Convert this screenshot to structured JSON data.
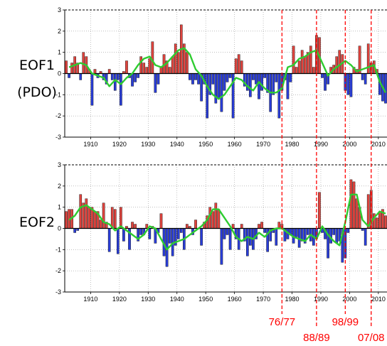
{
  "chart_data": [
    {
      "type": "bar",
      "panel_label_lines": [
        "EOF1",
        "(PDO)"
      ],
      "xlim": [
        1901,
        2013
      ],
      "ylim": [
        -3,
        3
      ],
      "x_ticks": [
        1910,
        1920,
        1930,
        1940,
        1950,
        1960,
        1970,
        1980,
        1990,
        2000,
        2010
      ],
      "x_tick_labels": [
        "1910",
        "1920",
        "1930",
        "1940",
        "1950",
        "1960",
        "1970",
        "1980",
        "1990",
        "2000",
        "2010"
      ],
      "y_ticks": [
        -3,
        -2,
        -1,
        0,
        1,
        2,
        3
      ],
      "y_tick_labels": [
        "-3",
        "-2",
        "-1",
        "0",
        "1",
        "2",
        "3"
      ],
      "grid": true,
      "series": [
        {
          "kind": "bar",
          "x": [
            1901,
            1902,
            1903,
            1904,
            1905,
            1906,
            1907,
            1908,
            1909,
            1910,
            1911,
            1912,
            1913,
            1914,
            1915,
            1916,
            1917,
            1918,
            1919,
            1920,
            1921,
            1922,
            1923,
            1924,
            1925,
            1926,
            1927,
            1928,
            1929,
            1930,
            1931,
            1932,
            1933,
            1934,
            1935,
            1936,
            1937,
            1938,
            1939,
            1940,
            1941,
            1942,
            1943,
            1944,
            1945,
            1946,
            1947,
            1948,
            1949,
            1950,
            1951,
            1952,
            1953,
            1954,
            1955,
            1956,
            1957,
            1958,
            1959,
            1960,
            1961,
            1962,
            1963,
            1964,
            1965,
            1966,
            1967,
            1968,
            1969,
            1970,
            1971,
            1972,
            1973,
            1974,
            1975,
            1976,
            1977,
            1978,
            1979,
            1980,
            1981,
            1982,
            1983,
            1984,
            1985,
            1986,
            1987,
            1988,
            1989,
            1990,
            1991,
            1992,
            1993,
            1994,
            1995,
            1996,
            1997,
            1998,
            1999,
            2000,
            2001,
            2002,
            2003,
            2004,
            2005,
            2006,
            2007,
            2008,
            2009,
            2010,
            2011,
            2012
          ],
          "values": [
            0.6,
            -0.2,
            0.5,
            0.8,
            0.5,
            -0.3,
            1.0,
            0.8,
            0.2,
            -1.5,
            0.2,
            -0.2,
            0.1,
            -0.3,
            -0.5,
            0.2,
            -0.3,
            -0.8,
            -0.3,
            -1.5,
            0.1,
            0.6,
            -0.2,
            -0.6,
            -0.4,
            -0.2,
            0.8,
            0.5,
            0.3,
            0.7,
            1.5,
            -0.9,
            -0.5,
            0.3,
            0.9,
            0.6,
            0.3,
            0.8,
            1.4,
            1.0,
            2.3,
            1.4,
            1.0,
            -0.3,
            -0.5,
            -0.3,
            -0.5,
            -1.3,
            -0.5,
            -2.1,
            -1.0,
            -0.5,
            -1.4,
            -1.2,
            -1.8,
            -0.8,
            -0.4,
            -0.2,
            -2.1,
            0.7,
            0.9,
            0.6,
            -0.6,
            -0.8,
            -1.1,
            -0.3,
            -0.5,
            -1.2,
            -0.8,
            -0.2,
            -0.9,
            -1.8,
            -1.0,
            -0.4,
            -2.1,
            -0.8,
            -0.3,
            -1.2,
            -0.4,
            1.3,
            0.3,
            0.6,
            1.1,
            0.8,
            1.0,
            1.3,
            0.3,
            1.8,
            1.7,
            -0.2,
            -0.8,
            -0.5,
            0.3,
            0.4,
            0.8,
            1.1,
            0.9,
            -0.8,
            -1.0,
            -1.1,
            0.3,
            0.2,
            1.3,
            -0.3,
            -0.5,
            1.4,
            0.5,
            0.6,
            0.2,
            -1.0,
            -1.3,
            -1.4
          ],
          "positive_color": "#e0443e",
          "negative_color": "#2a3ed8"
        },
        {
          "kind": "line",
          "color": "#2ecc30",
          "x": [
            1902,
            1904,
            1906,
            1908,
            1910,
            1912,
            1914,
            1916,
            1918,
            1920,
            1922,
            1924,
            1926,
            1928,
            1930,
            1932,
            1934,
            1936,
            1938,
            1940,
            1942,
            1944,
            1946,
            1948,
            1950,
            1952,
            1954,
            1956,
            1958,
            1960,
            1962,
            1964,
            1966,
            1968,
            1970,
            1972,
            1974,
            1976,
            1978,
            1980,
            1982,
            1984,
            1986,
            1988,
            1990,
            1992,
            1994,
            1996,
            1998,
            2000,
            2002,
            2004,
            2006,
            2008,
            2010,
            2012
          ],
          "values": [
            0.3,
            0.4,
            0.5,
            0.4,
            0.0,
            -0.1,
            -0.2,
            -0.6,
            -0.3,
            -0.5,
            -0.2,
            0.0,
            0.4,
            0.7,
            0.8,
            0.4,
            0.3,
            0.5,
            0.8,
            1.1,
            1.2,
            0.9,
            0.2,
            -0.1,
            -0.6,
            -1.0,
            -1.2,
            -1.0,
            -0.6,
            -0.2,
            -0.3,
            -0.6,
            -0.8,
            -0.4,
            -0.7,
            -0.9,
            -0.9,
            -0.7,
            0.3,
            0.4,
            0.7,
            0.8,
            1.0,
            1.1,
            0.5,
            -0.1,
            0.2,
            0.4,
            0.6,
            0.4,
            0.1,
            0.2,
            0.3,
            0.4,
            -0.4,
            -0.9
          ]
        }
      ]
    },
    {
      "type": "bar",
      "panel_label_lines": [
        "EOF2"
      ],
      "xlim": [
        1901,
        2013
      ],
      "ylim": [
        -3,
        3
      ],
      "x_ticks": [
        1910,
        1920,
        1930,
        1940,
        1950,
        1960,
        1970,
        1980,
        1990,
        2000,
        2010
      ],
      "x_tick_labels": [
        "1910",
        "1920",
        "1930",
        "1940",
        "1950",
        "1960",
        "1970",
        "1980",
        "1990",
        "2000",
        "2010"
      ],
      "y_ticks": [
        -3,
        -2,
        -1,
        0,
        1,
        2,
        3
      ],
      "y_tick_labels": [
        "-3",
        "-2",
        "-1",
        "0",
        "1",
        "2",
        "3"
      ],
      "grid": true,
      "series": [
        {
          "kind": "bar",
          "x": [
            1901,
            1902,
            1903,
            1904,
            1905,
            1906,
            1907,
            1908,
            1909,
            1910,
            1911,
            1912,
            1913,
            1914,
            1915,
            1916,
            1917,
            1918,
            1919,
            1920,
            1921,
            1922,
            1923,
            1924,
            1925,
            1926,
            1927,
            1928,
            1929,
            1930,
            1931,
            1932,
            1933,
            1934,
            1935,
            1936,
            1937,
            1938,
            1939,
            1940,
            1941,
            1942,
            1943,
            1944,
            1945,
            1946,
            1947,
            1948,
            1949,
            1950,
            1951,
            1952,
            1953,
            1954,
            1955,
            1956,
            1957,
            1958,
            1959,
            1960,
            1961,
            1962,
            1963,
            1964,
            1965,
            1966,
            1967,
            1968,
            1969,
            1970,
            1971,
            1972,
            1973,
            1974,
            1975,
            1976,
            1977,
            1978,
            1979,
            1980,
            1981,
            1982,
            1983,
            1984,
            1985,
            1986,
            1987,
            1988,
            1989,
            1990,
            1991,
            1992,
            1993,
            1994,
            1995,
            1996,
            1997,
            1998,
            1999,
            2000,
            2001,
            2002,
            2003,
            2004,
            2005,
            2006,
            2007,
            2008,
            2009,
            2010,
            2011,
            2012
          ],
          "values": [
            0.8,
            0.9,
            0.9,
            -0.2,
            -0.1,
            1.6,
            1.2,
            1.4,
            1.0,
            1.0,
            0.8,
            0.8,
            0.4,
            1.2,
            0.3,
            -1.1,
            1.0,
            0.9,
            -1.2,
            1.0,
            -0.6,
            0.1,
            -1.0,
            0.3,
            0.2,
            -0.6,
            -0.3,
            -0.3,
            0.2,
            -0.5,
            0.1,
            -0.7,
            -0.2,
            0.7,
            -1.3,
            -1.8,
            -0.7,
            -1.3,
            -0.8,
            -0.5,
            -0.2,
            -1.0,
            0.2,
            0.1,
            -0.3,
            0.4,
            0.0,
            -0.8,
            0.3,
            0.6,
            1.0,
            0.8,
            1.2,
            0.9,
            -1.7,
            -0.5,
            -0.3,
            -1.0,
            0.2,
            -0.5,
            -1.0,
            0.2,
            -0.6,
            -1.3,
            -0.8,
            -1.0,
            -0.5,
            0.2,
            0.3,
            -0.2,
            -1.1,
            -0.6,
            -0.2,
            -0.8,
            0.3,
            0.2,
            -0.6,
            -0.5,
            -0.3,
            -0.7,
            -0.4,
            -0.9,
            -0.6,
            -0.7,
            -0.3,
            -0.6,
            -0.8,
            -0.5,
            1.7,
            -0.2,
            -0.5,
            -1.4,
            -0.7,
            -0.3,
            -0.7,
            -0.6,
            -1.6,
            -1.4,
            -0.2,
            2.3,
            2.2,
            1.4,
            1.0,
            -0.1,
            -0.8,
            1.6,
            1.8,
            0.7,
            0.5,
            0.8,
            0.9,
            0.6
          ],
          "positive_color": "#e0443e",
          "negative_color": "#2a3ed8"
        },
        {
          "kind": "line",
          "color": "#2ecc30",
          "x": [
            1902,
            1904,
            1906,
            1908,
            1910,
            1912,
            1914,
            1916,
            1918,
            1920,
            1922,
            1924,
            1926,
            1928,
            1930,
            1932,
            1934,
            1936,
            1938,
            1940,
            1942,
            1944,
            1946,
            1948,
            1950,
            1952,
            1954,
            1956,
            1958,
            1960,
            1962,
            1964,
            1966,
            1968,
            1970,
            1972,
            1974,
            1976,
            1978,
            1980,
            1982,
            1984,
            1986,
            1988,
            1990,
            1992,
            1994,
            1996,
            1998,
            2000,
            2002,
            2004,
            2006,
            2008,
            2010,
            2012
          ],
          "values": [
            0.4,
            0.6,
            1.0,
            1.1,
            0.9,
            0.7,
            0.3,
            0.2,
            -0.1,
            0.1,
            -0.1,
            -0.3,
            -0.5,
            -0.3,
            0.1,
            0.0,
            -0.5,
            -1.0,
            -0.7,
            -0.6,
            -0.5,
            -0.3,
            -0.1,
            0.1,
            0.4,
            0.9,
            0.9,
            0.5,
            0.1,
            -0.4,
            -0.6,
            -0.4,
            -0.5,
            -0.2,
            -0.4,
            -0.1,
            0.0,
            0.0,
            -0.2,
            -0.4,
            -0.5,
            -0.6,
            -0.3,
            -0.5,
            0.1,
            -0.3,
            -0.6,
            -0.8,
            0.3,
            1.6,
            1.6,
            0.4,
            0.1,
            0.5,
            0.8,
            0.7
          ]
        }
      ]
    }
  ],
  "annotations": {
    "shift_years": [
      1976.5,
      1988.5,
      1998.5,
      2007.5
    ],
    "labels": [
      {
        "text": "76/77",
        "row": "upper"
      },
      {
        "text": "88/89",
        "row": "lower"
      },
      {
        "text": "98/99",
        "row": "upper"
      },
      {
        "text": "07/08",
        "row": "lower"
      }
    ],
    "line_color": "#ff0000"
  }
}
